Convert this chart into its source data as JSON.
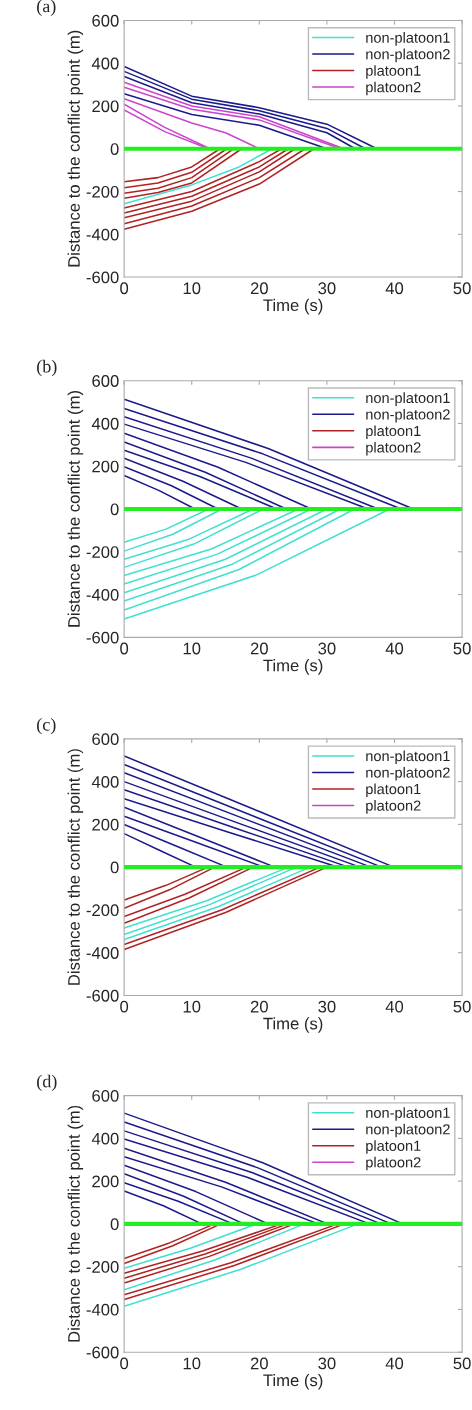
{
  "chart_data": [
    {
      "type": "line",
      "title": "(a)",
      "xlabel": "Time (s)",
      "ylabel": "Distance to the conflict point (m)",
      "xlim": [
        0,
        50
      ],
      "ylim": [
        -600,
        600
      ],
      "xticks": [
        0,
        10,
        20,
        30,
        40,
        50
      ],
      "yticks": [
        -600,
        -400,
        -200,
        0,
        200,
        400,
        600
      ],
      "legend": "top right",
      "grid": false,
      "ref_lines": [
        {
          "axis": "y",
          "value": 0,
          "color": "#22ee22"
        }
      ],
      "series": [
        {
          "name": "non-platoon1",
          "color": "#40e0d0",
          "x": [
            0,
            10,
            17,
            21.9
          ],
          "values": [
            -257,
            -169,
            -85,
            0
          ]
        },
        {
          "name": "non-platoon2",
          "color": "#1a1a8c",
          "x": [
            0,
            10,
            20,
            30,
            37.4
          ],
          "values": [
            385,
            246,
            192,
            115,
            0
          ]
        },
        {
          "color": "#1a1a8c",
          "x": [
            0,
            10,
            20,
            30,
            35.7
          ],
          "values": [
            362,
            232,
            178,
            95,
            0
          ]
        },
        {
          "color": "#1a1a8c",
          "x": [
            0,
            10,
            20,
            30,
            34.2
          ],
          "values": [
            338,
            215,
            162,
            75,
            0
          ]
        },
        {
          "color": "#1a1a8c",
          "x": [
            0,
            10,
            20,
            30
          ],
          "values": [
            257,
            160,
            110,
            0
          ]
        },
        {
          "name": "platoon1",
          "color": "#b22222",
          "x": [
            0,
            5,
            10,
            14.2
          ],
          "values": [
            -154,
            -135,
            -85,
            0
          ]
        },
        {
          "color": "#b22222",
          "x": [
            0,
            5,
            10,
            15.2
          ],
          "values": [
            -182,
            -160,
            -110,
            0
          ]
        },
        {
          "color": "#b22222",
          "x": [
            0,
            5,
            10,
            16.2
          ],
          "values": [
            -208,
            -185,
            -135,
            0
          ]
        },
        {
          "color": "#b22222",
          "x": [
            0,
            5,
            10,
            17.4
          ],
          "values": [
            -231,
            -205,
            -160,
            0
          ]
        },
        {
          "color": "#b22222",
          "x": [
            0,
            10,
            20,
            23.3
          ],
          "values": [
            -277,
            -200,
            -60,
            0
          ]
        },
        {
          "color": "#b22222",
          "x": [
            0,
            10,
            20,
            24.3
          ],
          "values": [
            -300,
            -222,
            -85,
            0
          ]
        },
        {
          "color": "#b22222",
          "x": [
            0,
            10,
            20,
            25.3
          ],
          "values": [
            -323,
            -245,
            -108,
            0
          ]
        },
        {
          "color": "#b22222",
          "x": [
            0,
            10,
            20,
            26.8
          ],
          "values": [
            -351,
            -268,
            -135,
            0
          ]
        },
        {
          "color": "#b22222",
          "x": [
            0,
            10,
            20,
            28.1
          ],
          "values": [
            -377,
            -292,
            -165,
            0
          ]
        },
        {
          "name": "platoon2",
          "color": "#cc44cc",
          "x": [
            0,
            10,
            20,
            32.5
          ],
          "values": [
            311,
            200,
            150,
            0
          ]
        },
        {
          "color": "#cc44cc",
          "x": [
            0,
            10,
            20,
            32
          ],
          "values": [
            288,
            185,
            135,
            0
          ]
        },
        {
          "color": "#cc44cc",
          "x": [
            0,
            10,
            15,
            20
          ],
          "values": [
            234,
            120,
            75,
            0
          ]
        },
        {
          "color": "#cc44cc",
          "x": [
            0,
            6,
            12.7
          ],
          "values": [
            208,
            100,
            0
          ]
        },
        {
          "color": "#cc44cc",
          "x": [
            0,
            6,
            12.5
          ],
          "values": [
            182,
            80,
            0
          ]
        }
      ]
    },
    {
      "type": "line",
      "title": "(b)",
      "xlabel": "Time (s)",
      "ylabel": "Distance to the conflict point (m)",
      "xlim": [
        0,
        50
      ],
      "ylim": [
        -600,
        600
      ],
      "xticks": [
        0,
        10,
        20,
        30,
        40,
        50
      ],
      "yticks": [
        -600,
        -400,
        -200,
        0,
        200,
        400,
        600
      ],
      "legend": "top right",
      "grid": false,
      "ref_lines": [
        {
          "axis": "y",
          "value": 0,
          "color": "#22ee22"
        }
      ],
      "series": [
        {
          "name": "non-platoon1",
          "color": "#40e0d0",
          "x": [
            0,
            6.2,
            12.5
          ],
          "values": [
            -156,
            -94,
            0
          ]
        },
        {
          "color": "#40e0d0",
          "x": [
            0,
            7.2,
            14.5
          ],
          "values": [
            -197,
            -118,
            0
          ]
        },
        {
          "color": "#40e0d0",
          "x": [
            0,
            9.6,
            19.1
          ],
          "values": [
            -235,
            -141,
            0
          ]
        },
        {
          "color": "#40e0d0",
          "x": [
            0,
            10.3,
            20.6
          ],
          "values": [
            -273,
            -164,
            0
          ]
        },
        {
          "color": "#40e0d0",
          "x": [
            0,
            12.9,
            25.8
          ],
          "values": [
            -311,
            -187,
            0
          ]
        },
        {
          "color": "#40e0d0",
          "x": [
            0,
            13.8,
            27.7
          ],
          "values": [
            -351,
            -211,
            0
          ]
        },
        {
          "color": "#40e0d0",
          "x": [
            0,
            15,
            30
          ],
          "values": [
            -392,
            -235,
            0
          ]
        },
        {
          "color": "#40e0d0",
          "x": [
            0,
            16,
            32
          ],
          "values": [
            -430,
            -258,
            0
          ]
        },
        {
          "color": "#40e0d0",
          "x": [
            0,
            17,
            34.1
          ],
          "values": [
            -472,
            -283,
            0
          ]
        },
        {
          "color": "#40e0d0",
          "x": [
            0,
            19.6,
            39.3
          ],
          "values": [
            -514,
            -308,
            0
          ]
        },
        {
          "name": "non-platoon2",
          "color": "#1a1a8c",
          "x": [
            0,
            5.2,
            10.5
          ],
          "values": [
            157,
            86,
            0
          ]
        },
        {
          "color": "#1a1a8c",
          "x": [
            0,
            7,
            13.9
          ],
          "values": [
            198,
            109,
            0
          ]
        },
        {
          "color": "#1a1a8c",
          "x": [
            0,
            8.7,
            17.4
          ],
          "values": [
            237,
            130,
            0
          ]
        },
        {
          "color": "#1a1a8c",
          "x": [
            0,
            11.3,
            22.6
          ],
          "values": [
            275,
            151,
            0
          ]
        },
        {
          "color": "#1a1a8c",
          "x": [
            0,
            12,
            24
          ],
          "values": [
            313,
            172,
            0
          ]
        },
        {
          "color": "#1a1a8c",
          "x": [
            0,
            13.9,
            27.7
          ],
          "values": [
            354,
            195,
            0
          ]
        },
        {
          "color": "#1a1a8c",
          "x": [
            0,
            18,
            36.1
          ],
          "values": [
            397,
            218,
            0
          ]
        },
        {
          "color": "#1a1a8c",
          "x": [
            0,
            18.8,
            37.6
          ],
          "values": [
            432,
            238,
            0
          ]
        },
        {
          "color": "#1a1a8c",
          "x": [
            0,
            20.5,
            41
          ],
          "values": [
            470,
            258,
            0
          ]
        },
        {
          "color": "#1a1a8c",
          "x": [
            0,
            21.4,
            42.8
          ],
          "values": [
            513,
            282,
            0
          ]
        },
        {
          "name": "platoon1",
          "color": "#b22222"
        },
        {
          "name": "platoon2",
          "color": "#cc44cc"
        }
      ]
    },
    {
      "type": "line",
      "title": "(c)",
      "xlabel": "Time (s)",
      "ylabel": "Distance to the conflict point (m)",
      "xlim": [
        0,
        50
      ],
      "ylim": [
        -600,
        600
      ],
      "xticks": [
        0,
        10,
        20,
        30,
        40,
        50
      ],
      "yticks": [
        -600,
        -400,
        -200,
        0,
        200,
        400,
        600
      ],
      "legend": "top right",
      "grid": false,
      "ref_lines": [
        {
          "axis": "y",
          "value": 0,
          "color": "#22ee22"
        }
      ],
      "series": [
        {
          "name": "non-platoon1",
          "color": "#40e0d0",
          "x": [
            0,
            12.2,
            24.3
          ],
          "values": [
            -285,
            -157,
            0
          ]
        },
        {
          "color": "#40e0d0",
          "x": [
            0,
            12.8,
            25.5
          ],
          "values": [
            -315,
            -173,
            0
          ]
        },
        {
          "color": "#40e0d0",
          "x": [
            0,
            13.8,
            27.5
          ],
          "values": [
            -338,
            -186,
            0
          ]
        },
        {
          "name": "non-platoon2",
          "color": "#1a1a8c",
          "x": [
            0,
            5.3,
            10.6
          ],
          "values": [
            157,
            78,
            0
          ]
        },
        {
          "color": "#1a1a8c",
          "x": [
            0,
            7.6,
            15.2
          ],
          "values": [
            200,
            100,
            0
          ]
        },
        {
          "color": "#1a1a8c",
          "x": [
            0,
            10.4,
            20.7
          ],
          "values": [
            238,
            119,
            0
          ]
        },
        {
          "color": "#1a1a8c",
          "x": [
            0,
            11.2,
            22.3
          ],
          "values": [
            280,
            140,
            0
          ]
        },
        {
          "color": "#1a1a8c",
          "x": [
            0,
            15.8,
            31.7
          ],
          "values": [
            320,
            160,
            0
          ]
        },
        {
          "color": "#1a1a8c",
          "x": [
            0,
            16.6,
            33.2
          ],
          "values": [
            362,
            181,
            0
          ]
        },
        {
          "color": "#1a1a8c",
          "x": [
            0,
            17.4,
            34.9
          ],
          "values": [
            400,
            200,
            0
          ]
        },
        {
          "color": "#1a1a8c",
          "x": [
            0,
            18.2,
            36.5
          ],
          "values": [
            442,
            221,
            0
          ]
        },
        {
          "color": "#1a1a8c",
          "x": [
            0,
            19,
            38.1
          ],
          "values": [
            480,
            240,
            0
          ]
        },
        {
          "color": "#1a1a8c",
          "x": [
            0,
            20,
            39.9
          ],
          "values": [
            520,
            260,
            0
          ]
        },
        {
          "name": "platoon1",
          "color": "#b22222",
          "x": [
            0,
            6.2,
            12.4
          ],
          "values": [
            -154,
            -85,
            0
          ]
        },
        {
          "color": "#b22222",
          "x": [
            0,
            6.7,
            13.4
          ],
          "values": [
            -192,
            -106,
            0
          ]
        },
        {
          "color": "#b22222",
          "x": [
            0,
            9,
            18.1
          ],
          "values": [
            -231,
            -127,
            0
          ]
        },
        {
          "color": "#b22222",
          "x": [
            0,
            9.6,
            19.1
          ],
          "values": [
            -262,
            -144,
            0
          ]
        },
        {
          "color": "#b22222",
          "x": [
            0,
            14.5,
            29
          ],
          "values": [
            -362,
            -199,
            0
          ]
        },
        {
          "color": "#b22222",
          "x": [
            0,
            15,
            30
          ],
          "values": [
            -385,
            -212,
            0
          ]
        },
        {
          "name": "platoon2",
          "color": "#cc44cc"
        }
      ]
    },
    {
      "type": "line",
      "title": "(d)",
      "xlabel": "Time (s)",
      "ylabel": "Distance to the conflict point (m)",
      "xlim": [
        0,
        50
      ],
      "ylim": [
        -600,
        600
      ],
      "xticks": [
        0,
        10,
        20,
        30,
        40,
        50
      ],
      "yticks": [
        -600,
        -400,
        -200,
        0,
        200,
        400,
        600
      ],
      "legend": "top right",
      "grid": false,
      "ref_lines": [
        {
          "axis": "y",
          "value": 0,
          "color": "#22ee22"
        }
      ],
      "series": [
        {
          "name": "non-platoon1",
          "color": "#40e0d0",
          "x": [
            0,
            9.8,
            19.6
          ],
          "values": [
            -208,
            -114,
            0
          ]
        },
        {
          "color": "#40e0d0",
          "x": [
            0,
            13.4,
            26.7
          ],
          "values": [
            -308,
            -169,
            0
          ]
        },
        {
          "color": "#40e0d0",
          "x": [
            0,
            17.3,
            34.6
          ],
          "values": [
            -385,
            -212,
            0
          ]
        },
        {
          "name": "non-platoon2",
          "color": "#1a1a8c",
          "x": [
            0,
            5.8,
            11.5
          ],
          "values": [
            154,
            85,
            0
          ]
        },
        {
          "color": "#1a1a8c",
          "x": [
            0,
            8,
            16.1
          ],
          "values": [
            192,
            106,
            0
          ]
        },
        {
          "color": "#1a1a8c",
          "x": [
            0,
            8.8,
            17.7
          ],
          "values": [
            234,
            129,
            0
          ]
        },
        {
          "color": "#1a1a8c",
          "x": [
            0,
            10.6,
            21.3
          ],
          "values": [
            274,
            151,
            0
          ]
        },
        {
          "color": "#1a1a8c",
          "x": [
            0,
            14.4,
            28.7
          ],
          "values": [
            314,
            173,
            0
          ]
        },
        {
          "color": "#1a1a8c",
          "x": [
            0,
            15,
            30.1
          ],
          "values": [
            354,
            195,
            0
          ]
        },
        {
          "color": "#1a1a8c",
          "x": [
            0,
            18.2,
            36.3
          ],
          "values": [
            397,
            218,
            0
          ]
        },
        {
          "color": "#1a1a8c",
          "x": [
            0,
            19,
            38
          ],
          "values": [
            435,
            239,
            0
          ]
        },
        {
          "color": "#1a1a8c",
          "x": [
            0,
            19.8,
            39.5
          ],
          "values": [
            477,
            262,
            0
          ]
        },
        {
          "color": "#1a1a8c",
          "x": [
            0,
            20.6,
            41.2
          ],
          "values": [
            518,
            285,
            0
          ]
        },
        {
          "name": "platoon1",
          "color": "#b22222",
          "x": [
            0,
            6.7,
            13.4
          ],
          "values": [
            -162,
            -89,
            0
          ]
        },
        {
          "color": "#b22222",
          "x": [
            0,
            7.2,
            14.3
          ],
          "values": [
            -185,
            -102,
            0
          ]
        },
        {
          "color": "#b22222",
          "x": [
            0,
            11.6,
            23.3
          ],
          "values": [
            -231,
            -127,
            0
          ]
        },
        {
          "color": "#b22222",
          "x": [
            0,
            12.1,
            24.2
          ],
          "values": [
            -254,
            -140,
            0
          ]
        },
        {
          "color": "#b22222",
          "x": [
            0,
            12.6,
            25.2
          ],
          "values": [
            -277,
            -152,
            0
          ]
        },
        {
          "color": "#b22222",
          "x": [
            0,
            15.8,
            31.6
          ],
          "values": [
            -331,
            -182,
            0
          ]
        },
        {
          "color": "#b22222",
          "x": [
            0,
            16.3,
            32.6
          ],
          "values": [
            -354,
            -195,
            0
          ]
        },
        {
          "name": "platoon2",
          "color": "#cc44cc"
        }
      ]
    }
  ]
}
